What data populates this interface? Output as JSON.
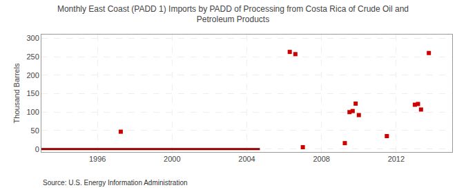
{
  "chart_data": {
    "type": "scatter",
    "title": "Monthly East Coast (PADD 1) Imports by PADD of Processing from Costa Rica of Crude Oil and\nPetroleum Products",
    "ylabel": "Thousand Barrels",
    "annotation": "Source: U.S. Energy Information Administration",
    "series": [
      {
        "type": "line",
        "color": "#8b0000",
        "line_style": "solid",
        "x": [
          1993.0,
          2004.7
        ],
        "values": [
          0,
          0
        ]
      },
      {
        "type": "scatter",
        "color": "#cc0000",
        "marker": "square",
        "x": [
          1997.25,
          2006.3,
          2006.6,
          2007.0,
          2009.25,
          2009.5,
          2009.67,
          2009.83,
          2010.0,
          2011.5,
          2013.0,
          2013.17,
          2013.33,
          2013.75
        ],
        "values": [
          47,
          263,
          257,
          5,
          16,
          100,
          103,
          123,
          92,
          35,
          120,
          122,
          107,
          260
        ]
      }
    ],
    "xlim": [
      1993.0,
      2015.0
    ],
    "ylim": [
      -8,
      310
    ],
    "xticks": [
      1996,
      2000,
      2004,
      2008,
      2012
    ],
    "yticks": [
      0,
      50,
      100,
      150,
      200,
      250,
      300
    ],
    "grid": true
  }
}
